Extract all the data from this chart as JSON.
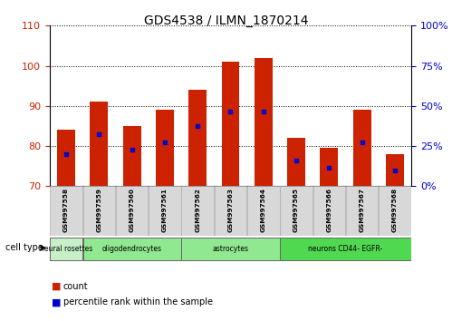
{
  "title": "GDS4538 / ILMN_1870214",
  "samples": [
    "GSM997558",
    "GSM997559",
    "GSM997560",
    "GSM997561",
    "GSM997562",
    "GSM997563",
    "GSM997564",
    "GSM997565",
    "GSM997566",
    "GSM997567",
    "GSM997568"
  ],
  "count_values": [
    84,
    91,
    85,
    89,
    94,
    101,
    102,
    82,
    79.5,
    89,
    78
  ],
  "percentile_values": [
    78,
    83,
    79,
    81,
    85,
    88.5,
    88.5,
    76.5,
    74.5,
    81,
    74
  ],
  "ylim": [
    70,
    110
  ],
  "yticks": [
    70,
    80,
    90,
    100,
    110
  ],
  "right_tick_positions": [
    70,
    80,
    90,
    100,
    110
  ],
  "right_tick_labels": [
    "0%",
    "25%",
    "50%",
    "75%",
    "100%"
  ],
  "bar_color": "#cc2200",
  "marker_color": "#0000cc",
  "bar_width": 0.55,
  "cell_type_groups": [
    {
      "label": "neural rosettes",
      "start": 0,
      "end": 1,
      "color": "#c8f0c8"
    },
    {
      "label": "oligodendrocytes",
      "start": 1,
      "end": 4,
      "color": "#90e890"
    },
    {
      "label": "astrocytes",
      "start": 4,
      "end": 7,
      "color": "#90e890"
    },
    {
      "label": "neurons CD44- EGFR-",
      "start": 7,
      "end": 11,
      "color": "#50d850"
    }
  ],
  "ylabel_left_color": "#cc2200",
  "ylabel_right_color": "#0000cc",
  "bg_color": "#ffffff",
  "plot_bg_color": "#ffffff",
  "tick_label_area_color": "#d8d8d8",
  "legend_count_color": "#cc2200",
  "legend_pct_color": "#0000cc"
}
